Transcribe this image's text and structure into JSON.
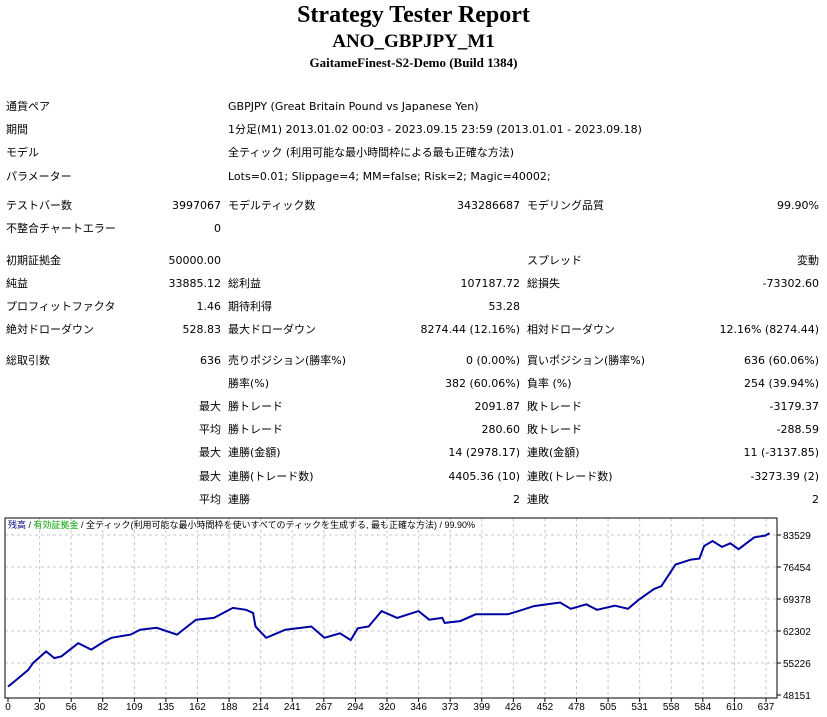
{
  "header": {
    "title": "Strategy Tester Report",
    "subtitle": "ANO_GBPJPY_M1",
    "server": "GaitameFinest-S2-Demo (Build 1384)"
  },
  "info": [
    {
      "label": "通貨ペア",
      "value": "GBPJPY (Great Britain Pound vs Japanese Yen)"
    },
    {
      "label": "期間",
      "value": "1分足(M1) 2013.01.02 00:03 - 2023.09.15 23:59 (2013.01.01 - 2023.09.18)"
    },
    {
      "label": "モデル",
      "value": "全ティック (利用可能な最小時間枠による最も正確な方法)"
    },
    {
      "label": "パラメーター",
      "value": "Lots=0.01; Slippage=4; MM=false; Risk=2; Magic=40002;"
    }
  ],
  "stats": [
    [
      "テストバー数",
      "3997067",
      "モデルティック数",
      "343286687",
      "モデリング品質",
      "99.90%"
    ],
    [
      "不整合チャートエラー",
      "0",
      "",
      "",
      "",
      ""
    ],
    [
      "初期証拠金",
      "50000.00",
      "",
      "",
      "スプレッド",
      "変動"
    ],
    [
      "純益",
      "33885.12",
      "総利益",
      "107187.72",
      "総損失",
      "-73302.60"
    ],
    [
      "プロフィットファクタ",
      "1.46",
      "期待利得",
      "53.28",
      "",
      ""
    ],
    [
      "絶対ドローダウン",
      "528.83",
      "最大ドローダウン",
      "8274.44 (12.16%)",
      "相対ドローダウン",
      "12.16% (8274.44)"
    ],
    [
      "総取引数",
      "636",
      "売りポジション(勝率%)",
      "0 (0.00%)",
      "買いポジション(勝率%)",
      "636 (60.06%)"
    ],
    [
      "",
      "",
      "勝率(%)",
      "382 (60.06%)",
      "負率 (%)",
      "254 (39.94%)"
    ],
    [
      "",
      "最大",
      "勝トレード",
      "2091.87",
      "敗トレード",
      "-3179.37"
    ],
    [
      "",
      "平均",
      "勝トレード",
      "280.60",
      "敗トレード",
      "-288.59"
    ],
    [
      "",
      "最大",
      "連勝(金額)",
      "14 (2978.17)",
      "連敗(金額)",
      "11 (-3137.85)"
    ],
    [
      "",
      "最大",
      "連勝(トレード数)",
      "4405.36 (10)",
      "連敗(トレード数)",
      "-3273.39 (2)"
    ],
    [
      "",
      "平均",
      "連勝",
      "2",
      "連敗",
      "2"
    ]
  ],
  "chart_data": {
    "type": "line",
    "legend": {
      "balance": "残高",
      "sep1": " / ",
      "equity": "有効証拠金",
      "model": " / 全ティック(利用可能な最小時間枠を使いすべてのティックを生成する, 最も正確な方法) / 99.90%"
    },
    "colors": {
      "line": "#0000a0",
      "balance": "#000080",
      "equity": "#00a000",
      "grid": "#c8c8c8"
    },
    "xlim": [
      0,
      640
    ],
    "ylim": [
      48151,
      83529
    ],
    "x_ticks": [
      "0",
      "30",
      "56",
      "82",
      "109",
      "135",
      "162",
      "188",
      "214",
      "241",
      "267",
      "294",
      "320",
      "346",
      "373",
      "399",
      "426",
      "452",
      "478",
      "505",
      "531",
      "558",
      "584",
      "610",
      "637"
    ],
    "y_ticks": [
      "83529",
      "76454",
      "69378",
      "62302",
      "55226",
      "48151"
    ],
    "series": [
      {
        "name": "残高",
        "points": [
          [
            0,
            50000
          ],
          [
            7,
            51500
          ],
          [
            17,
            53700
          ],
          [
            21,
            55200
          ],
          [
            32,
            57800
          ],
          [
            39,
            56300
          ],
          [
            45,
            56700
          ],
          [
            59,
            59600
          ],
          [
            70,
            58200
          ],
          [
            81,
            60000
          ],
          [
            87,
            60800
          ],
          [
            103,
            61500
          ],
          [
            111,
            62600
          ],
          [
            125,
            63000
          ],
          [
            142,
            61500
          ],
          [
            158,
            64800
          ],
          [
            173,
            65200
          ],
          [
            189,
            67400
          ],
          [
            200,
            67000
          ],
          [
            206,
            66300
          ],
          [
            208,
            63300
          ],
          [
            217,
            60800
          ],
          [
            233,
            62600
          ],
          [
            255,
            63300
          ],
          [
            266,
            60800
          ],
          [
            279,
            61800
          ],
          [
            288,
            60300
          ],
          [
            294,
            62900
          ],
          [
            303,
            63300
          ],
          [
            314,
            66700
          ],
          [
            327,
            65200
          ],
          [
            345,
            66700
          ],
          [
            354,
            64800
          ],
          [
            365,
            65200
          ],
          [
            367,
            64100
          ],
          [
            380,
            64500
          ],
          [
            393,
            66000
          ],
          [
            420,
            66000
          ],
          [
            429,
            66700
          ],
          [
            442,
            67800
          ],
          [
            464,
            68600
          ],
          [
            473,
            67200
          ],
          [
            486,
            68200
          ],
          [
            495,
            67000
          ],
          [
            510,
            67900
          ],
          [
            521,
            67200
          ],
          [
            530,
            69200
          ],
          [
            543,
            71600
          ],
          [
            549,
            72200
          ],
          [
            561,
            77000
          ],
          [
            569,
            77700
          ],
          [
            574,
            78100
          ],
          [
            581,
            78300
          ],
          [
            585,
            81100
          ],
          [
            592,
            82200
          ],
          [
            600,
            80900
          ],
          [
            607,
            81700
          ],
          [
            614,
            80400
          ],
          [
            627,
            83000
          ],
          [
            636,
            83400
          ],
          [
            640,
            83900
          ]
        ]
      }
    ]
  }
}
